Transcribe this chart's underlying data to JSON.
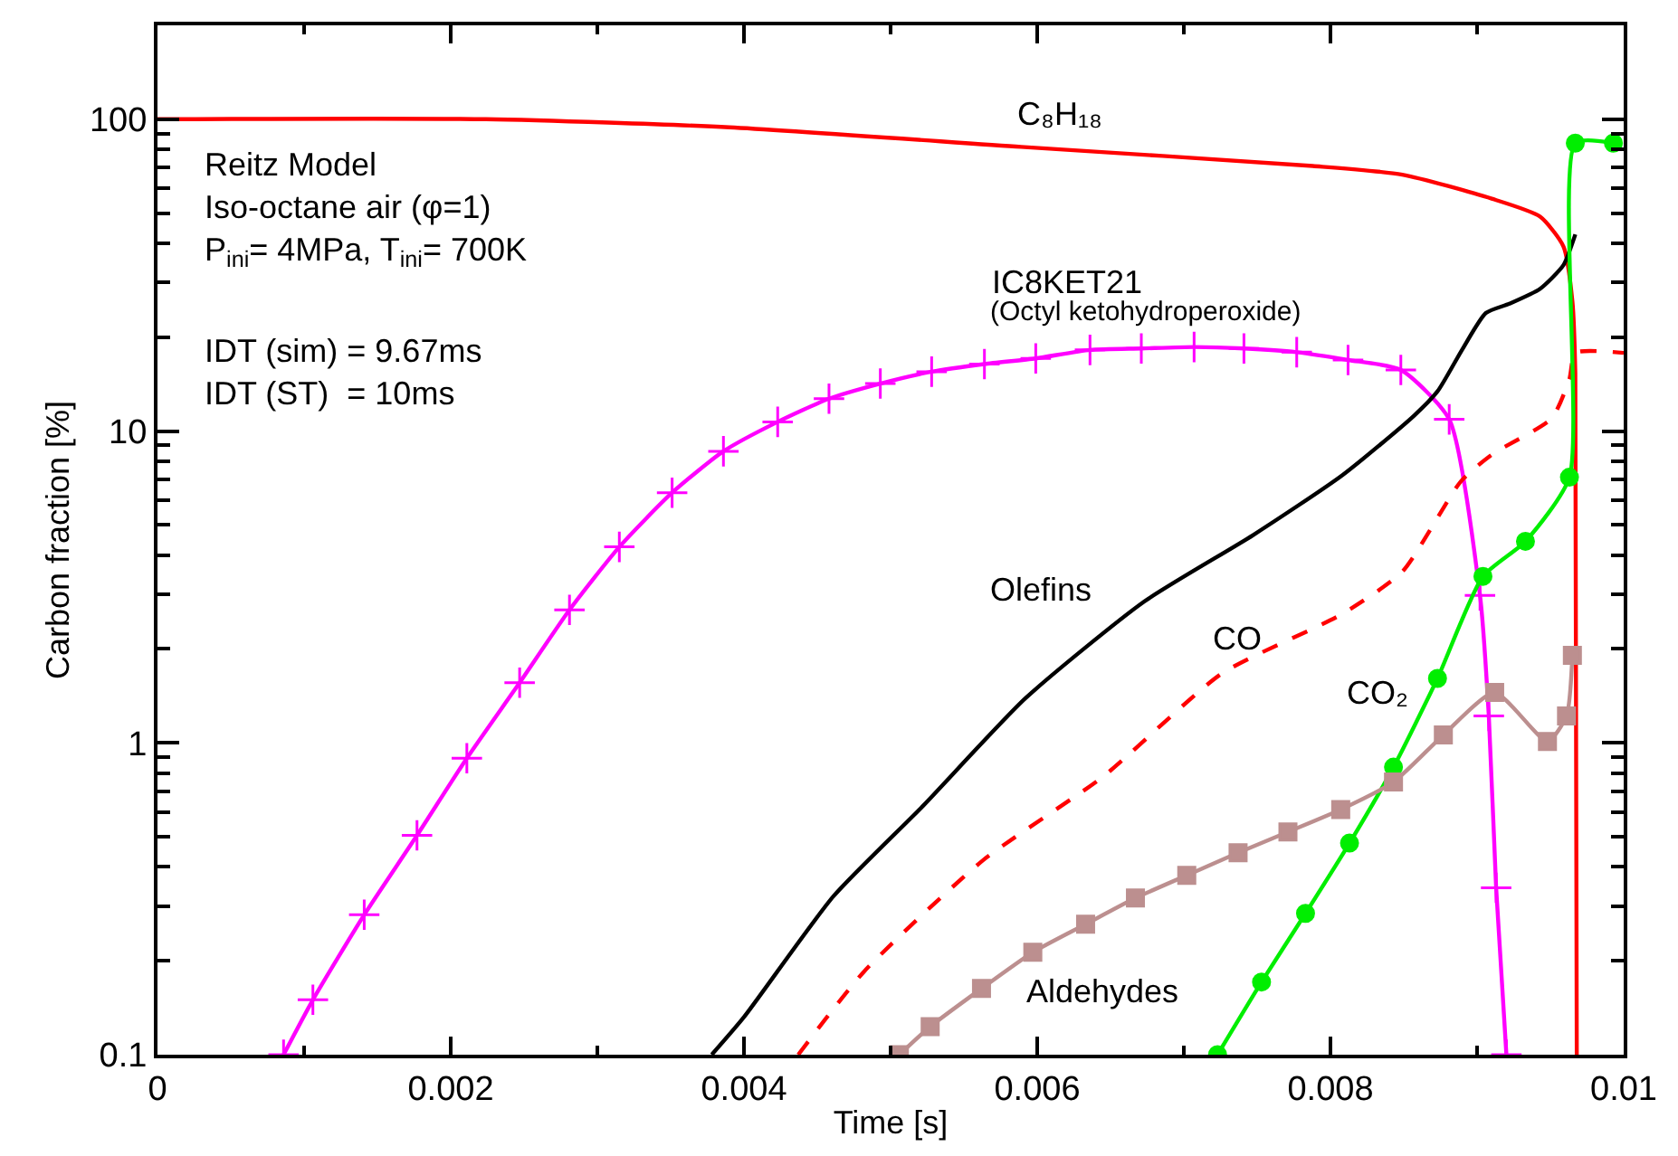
{
  "chart_data": {
    "type": "line",
    "xlabel": "Time [s]",
    "ylabel": "Carbon fraction [%]",
    "log": "y",
    "legend": false,
    "xlim": [
      0,
      0.01
    ],
    "xticks": [
      0,
      0.002,
      0.004,
      0.006,
      0.008,
      0.01
    ],
    "ylim": [
      0.1,
      200
    ],
    "yticks": [
      0.1,
      1,
      10,
      100
    ],
    "series": [
      {
        "name": "C₈H₁₈",
        "color": "#ff0000",
        "marker": "none",
        "line_style": "solid",
        "x": [
          0,
          0.00224,
          0.0039,
          0.00589,
          0.00788,
          0.00849,
          0.0091,
          0.00943,
          0.00959,
          0.00965,
          0.00967,
          0.00968
        ],
        "values": [
          100,
          100,
          94.2,
          81.5,
          70.8,
          66.4,
          55.6,
          48.7,
          39.0,
          26.1,
          15.3,
          0.1
        ]
      },
      {
        "name": "IC8KET21",
        "color": "#ff00ff",
        "marker": "cross",
        "line_style": "solid",
        "x": [
          0.00086,
          0.00106,
          0.00141,
          0.00177,
          0.00211,
          0.00247,
          0.00281,
          0.00315,
          0.00351,
          0.00386,
          0.00423,
          0.00458,
          0.00493,
          0.00528,
          0.00564,
          0.00599,
          0.00636,
          0.00671,
          0.00707,
          0.00741,
          0.00777,
          0.00812,
          0.00848,
          0.00881,
          0.00902,
          0.00908,
          0.00913,
          0.0092
        ],
        "values": [
          0.1,
          0.15,
          0.281,
          0.505,
          0.893,
          1.56,
          2.67,
          4.25,
          6.34,
          8.61,
          10.7,
          12.7,
          14.2,
          15.5,
          16.4,
          17.1,
          18.2,
          18.4,
          18.6,
          18.4,
          17.9,
          16.9,
          15.7,
          10.9,
          2.97,
          1.22,
          0.343,
          0.1
        ]
      },
      {
        "name": "Olefins",
        "color": "#000000",
        "marker": "none",
        "line_style": "solid",
        "x": [
          0.00378,
          0.004,
          0.00461,
          0.00522,
          0.00592,
          0.00673,
          0.00747,
          0.00808,
          0.00857,
          0.00873,
          0.0089,
          0.00906,
          0.00922,
          0.00943,
          0.00959,
          0.00967
        ],
        "values": [
          0.1,
          0.132,
          0.322,
          0.627,
          1.39,
          2.84,
          4.63,
          7.21,
          11.2,
          13.4,
          18.3,
          23.9,
          25.6,
          28.6,
          34.1,
          42.7
        ]
      },
      {
        "name": "CO",
        "color": "#ff0000",
        "marker": "none",
        "line_style": "dashed",
        "x": [
          0.00437,
          0.00482,
          0.00563,
          0.00645,
          0.00726,
          0.00808,
          0.00849,
          0.00889,
          0.0091,
          0.00951,
          0.00963,
          0.00967,
          0.01
        ],
        "values": [
          0.1,
          0.185,
          0.42,
          0.78,
          1.67,
          2.59,
          3.54,
          6.9,
          8.4,
          11,
          14.7,
          17.8,
          17.8
        ]
      },
      {
        "name": "CO₂",
        "color": "#00ee00",
        "marker": "circle",
        "line_style": "solid",
        "x": [
          0.00723,
          0.00753,
          0.00783,
          0.00813,
          0.00843,
          0.00873,
          0.00904,
          0.00933,
          0.00963,
          0.00967,
          0.00993
        ],
        "values": [
          0.1,
          0.171,
          0.284,
          0.477,
          0.836,
          1.61,
          3.42,
          4.43,
          7.11,
          83.8,
          83.8
        ]
      },
      {
        "name": "Aldehydes",
        "color": "#bc8f8f",
        "marker": "square",
        "line_style": "solid",
        "x": [
          0.00506,
          0.00527,
          0.00562,
          0.00597,
          0.00633,
          0.00667,
          0.00702,
          0.00737,
          0.00771,
          0.00807,
          0.00843,
          0.00877,
          0.00912,
          0.00948,
          0.00961,
          0.00965
        ],
        "values": [
          0.1,
          0.123,
          0.163,
          0.213,
          0.262,
          0.318,
          0.376,
          0.444,
          0.518,
          0.611,
          0.749,
          1.06,
          1.45,
          1.01,
          1.22,
          1.91
        ]
      }
    ],
    "annotations": [
      "Reitz Model\nIso-octane air (φ=1)\nP$_{ini}$= 4MPa, T$_{ini}$= 700K",
      "IDT (sim) = 9.67ms\nIDT (ST)  = 10ms",
      "(Octyl ketohydroperoxide)"
    ]
  }
}
